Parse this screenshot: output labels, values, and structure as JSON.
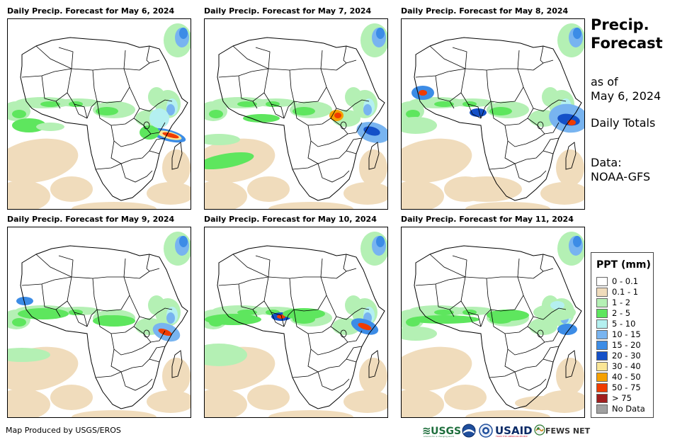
{
  "panels": [
    {
      "title": "Daily Precip. Forecast for May 6, 2024"
    },
    {
      "title": "Daily Precip. Forecast for May 7, 2024"
    },
    {
      "title": "Daily Precip. Forecast for May 8, 2024"
    },
    {
      "title": "Daily Precip. Forecast for May 9, 2024"
    },
    {
      "title": "Daily Precip. Forecast for May 10, 2024"
    },
    {
      "title": "Daily Precip. Forecast for May 11, 2024"
    }
  ],
  "side": {
    "title_line1": "Precip.",
    "title_line2": "Forecast",
    "asof_line1": "as of",
    "asof_line2": "May 6, 2024",
    "totals": "Daily Totals",
    "data_line1": "Data:",
    "data_line2": "NOAA-GFS"
  },
  "legend": {
    "title": "PPT (mm)",
    "items": [
      {
        "label": "0 - 0.1",
        "color": "#ffffff"
      },
      {
        "label": "0.1 - 1",
        "color": "#f0dcbc"
      },
      {
        "label": "1 - 2",
        "color": "#b4f0b4"
      },
      {
        "label": "2 - 5",
        "color": "#5ee65e"
      },
      {
        "label": "5 - 10",
        "color": "#b4f0f0"
      },
      {
        "label": "10 - 15",
        "color": "#78b4f0"
      },
      {
        "label": "15 - 20",
        "color": "#3c8ce6"
      },
      {
        "label": "20 - 30",
        "color": "#1450c8"
      },
      {
        "label": "30 - 40",
        "color": "#fae696"
      },
      {
        "label": "40 - 50",
        "color": "#f5a000"
      },
      {
        "label": "50 - 75",
        "color": "#f03c00"
      },
      {
        "label": "> 75",
        "color": "#a01e1e"
      },
      {
        "label": "No Data",
        "color": "#a0a0a0"
      }
    ]
  },
  "credit": "Map Produced by USGS/EROS",
  "logos": {
    "usgs": "USGS",
    "usgs_tagline": "science for a changing world",
    "usaid": "USAID",
    "usaid_tagline": "FROM THE AMERICAN PEOPLE",
    "fews": "FEWS NET"
  }
}
